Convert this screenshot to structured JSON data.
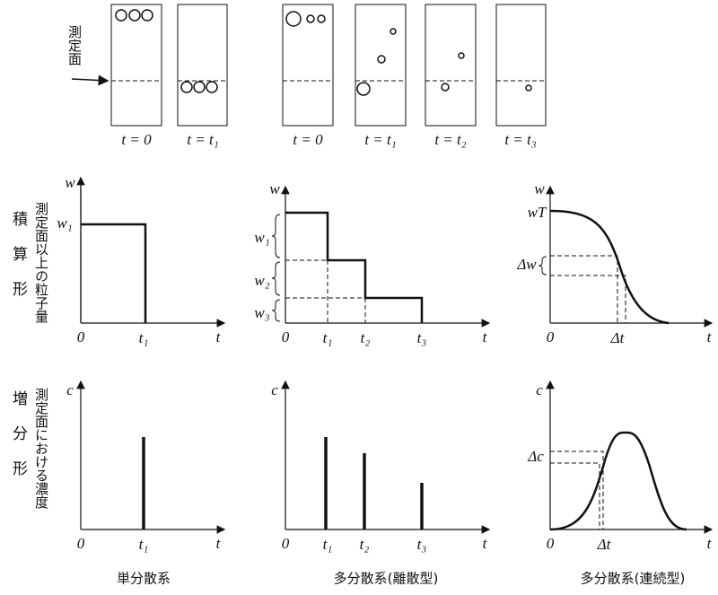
{
  "tube_diagram": {
    "plane_label": "測定面",
    "labels": [
      "t = 0",
      "t = t₁",
      "t = 0",
      "t = t₁",
      "t = t₂",
      "t = t₃"
    ]
  },
  "row_labels": [
    "積算形",
    "増分形"
  ],
  "axis_titles": [
    "測定面以上の粒子量",
    "測定面における濃度"
  ],
  "panels": [
    {
      "y_symbol": "w",
      "x_symbol": "t",
      "origin": "0",
      "x_labels": [
        "t₁"
      ],
      "y_labels": [
        "w₁"
      ]
    },
    {
      "y_symbol": "w",
      "x_symbol": "t",
      "origin": "0",
      "x_labels": [
        "t₁",
        "t₂",
        "t₃"
      ],
      "y_labels": [
        "w₁",
        "w₂",
        "w₃"
      ]
    },
    {
      "y_symbol": "w",
      "x_symbol": "t",
      "origin": "0",
      "x_labels": [
        "Δt"
      ],
      "y_labels": [
        "wT",
        "Δw"
      ]
    },
    {
      "y_symbol": "c",
      "x_symbol": "t",
      "origin": "0",
      "x_labels": [
        "t₁"
      ],
      "y_labels": []
    },
    {
      "y_symbol": "c",
      "x_symbol": "t",
      "origin": "0",
      "x_labels": [
        "t₁",
        "t₂",
        "t₃"
      ],
      "y_labels": []
    },
    {
      "y_symbol": "c",
      "x_symbol": "t",
      "origin": "0",
      "x_labels": [
        "Δt"
      ],
      "y_labels": [
        "Δc"
      ]
    }
  ],
  "column_labels": [
    "単分散系",
    "多分散系(離散型)",
    "多分散系(連続型)"
  ]
}
